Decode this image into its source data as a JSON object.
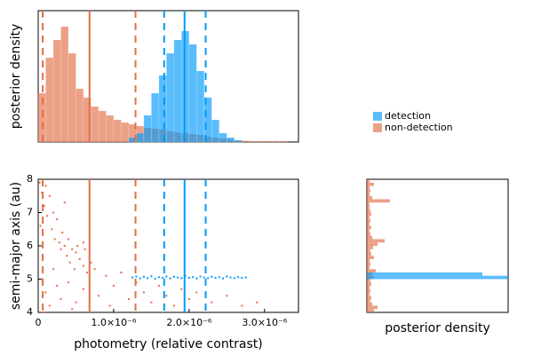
{
  "chart_data": [
    {
      "type": "histogram",
      "ylabel": "posterior density",
      "bins": [
        0,
        1e-07,
        2e-07,
        3e-07,
        4e-07,
        5e-07,
        6e-07,
        7e-07,
        8e-07,
        9e-07,
        1e-06,
        1.1e-06,
        1.2e-06,
        1.3e-06,
        1.4e-06,
        1.5e-06,
        1.6e-06,
        1.7e-06,
        1.8e-06,
        1.9e-06,
        2e-06,
        2.1e-06,
        2.2e-06,
        2.3e-06,
        2.4e-06,
        2.5e-06,
        2.6e-06,
        2.7e-06,
        2.8e-06,
        2.9e-06,
        3e-06,
        3.1e-06,
        3.2e-06,
        3.3e-06
      ],
      "series": [
        {
          "name": "detection",
          "color": "#009afa",
          "values": [
            0,
            0,
            0,
            0,
            0,
            0,
            0,
            0,
            0,
            0,
            0,
            0,
            5,
            10,
            30,
            55,
            75,
            100,
            115,
            125,
            110,
            80,
            50,
            25,
            10,
            5,
            2,
            0,
            0,
            0,
            0,
            0,
            0
          ]
        },
        {
          "name": "non-detection",
          "color": "#e26f46",
          "values": [
            55,
            95,
            115,
            130,
            100,
            60,
            50,
            40,
            35,
            30,
            25,
            22,
            20,
            18,
            16,
            15,
            14,
            12,
            11,
            10,
            9,
            8,
            6,
            5,
            4,
            3,
            2,
            1.5,
            1,
            1,
            1,
            1,
            1
          ]
        }
      ],
      "xlim": [
        0,
        3.45e-06
      ],
      "ylim": [
        0,
        148
      ],
      "legend": "outer right",
      "vlines": [
        {
          "x": 6e-08,
          "color": "#e26f46",
          "dash": true
        },
        {
          "x": 6.8e-07,
          "color": "#e26f46",
          "dash": false
        },
        {
          "x": 1.29e-06,
          "color": "#e26f46",
          "dash": true
        },
        {
          "x": 1.67e-06,
          "color": "#009afa",
          "dash": true
        },
        {
          "x": 1.94e-06,
          "color": "#009afa",
          "dash": false
        },
        {
          "x": 2.22e-06,
          "color": "#009afa",
          "dash": true
        }
      ]
    },
    {
      "type": "scatter",
      "xlabel": "photometry (relative contrast)",
      "ylabel": "semi-major axis (au)",
      "xlim": [
        0,
        3.45e-06
      ],
      "ylim": [
        4,
        8
      ],
      "xticks": [
        0,
        {
          "value": 1e-06,
          "label": "1.0×10⁻⁶"
        },
        {
          "value": 2e-06,
          "label": "2.0×10⁻⁶"
        },
        {
          "value": 3e-06,
          "label": "3.0×10⁻⁶"
        }
      ],
      "yticks": [
        4,
        5,
        6,
        7,
        8
      ],
      "series": [
        {
          "color": "#e26f46",
          "x": [
            2e-08,
            5e-08,
            8e-08,
            1e-07,
            1.2e-07,
            1.5e-07,
            1.8e-07,
            2e-07,
            2.2e-07,
            2.5e-07,
            2.8e-07,
            3e-07,
            3.2e-07,
            3.5e-07,
            3.8e-07,
            4e-07,
            4.2e-07,
            4.5e-07,
            4.8e-07,
            5e-07,
            5.2e-07,
            5.5e-07,
            6e-07,
            6.2e-07,
            6.5e-07,
            7e-07,
            5e-08,
            1e-07,
            1.5e-07,
            2e-07,
            2.5e-07,
            3e-07,
            4e-07,
            5e-07,
            6e-07,
            7.5e-07,
            8e-07,
            9e-07,
            9.5e-07,
            1e-06,
            1.1e-06,
            1.2e-06,
            1.3e-06,
            1.4e-06,
            1.5e-06,
            1.6e-06,
            1.7e-06,
            1.8e-06,
            1.9e-06,
            2e-06,
            2.1e-06,
            2.3e-06,
            2.5e-06,
            2.7e-06,
            2.9e-06,
            8e-08,
            3.5e-07,
            3e-08,
            6e-07,
            4.5e-07
          ],
          "y": [
            7.9,
            7.6,
            7.2,
            7.8,
            6.9,
            7.5,
            6.5,
            7.0,
            6.2,
            6.8,
            6.1,
            5.9,
            6.4,
            6.0,
            5.7,
            6.2,
            5.5,
            5.9,
            5.3,
            5.8,
            6.0,
            5.6,
            5.4,
            5.9,
            5.2,
            5.5,
            5.0,
            4.6,
            4.2,
            5.3,
            4.8,
            4.4,
            4.9,
            4.3,
            4.7,
            5.3,
            4.5,
            5.1,
            4.2,
            4.8,
            5.2,
            4.4,
            4.9,
            4.6,
            4.3,
            4.8,
            4.5,
            4.2,
            4.7,
            4.4,
            4.6,
            4.3,
            4.5,
            4.2,
            4.3,
            4.0,
            7.3,
            6.6,
            6.1,
            4.1
          ]
        },
        {
          "color": "#009afa",
          "x": [
            1.25e-06,
            1.3e-06,
            1.35e-06,
            1.4e-06,
            1.45e-06,
            1.5e-06,
            1.55e-06,
            1.6e-06,
            1.65e-06,
            1.7e-06,
            1.75e-06,
            1.8e-06,
            1.85e-06,
            1.9e-06,
            1.95e-06,
            2e-06,
            2.05e-06,
            2.1e-06,
            2.15e-06,
            2.2e-06,
            2.25e-06,
            2.3e-06,
            2.35e-06,
            2.4e-06,
            2.45e-06,
            2.5e-06,
            2.55e-06,
            2.6e-06,
            2.65e-06,
            2.7e-06,
            2.75e-06
          ],
          "y": [
            5.05,
            5.08,
            5.02,
            5.07,
            5.03,
            5.09,
            5.01,
            5.06,
            5.04,
            5.08,
            5.02,
            5.07,
            5.05,
            5.03,
            5.09,
            5.04,
            5.06,
            5.02,
            5.08,
            5.05,
            5.03,
            5.07,
            5.04,
            5.06,
            5.02,
            5.08,
            5.05,
            5.03,
            5.06,
            5.04,
            5.05
          ]
        }
      ],
      "vlines": [
        {
          "x": 6e-08,
          "color": "#e26f46",
          "dash": true
        },
        {
          "x": 6.8e-07,
          "color": "#e26f46",
          "dash": false
        },
        {
          "x": 1.29e-06,
          "color": "#e26f46",
          "dash": true
        },
        {
          "x": 1.67e-06,
          "color": "#009afa",
          "dash": true
        },
        {
          "x": 1.94e-06,
          "color": "#009afa",
          "dash": false
        },
        {
          "x": 2.22e-06,
          "color": "#009afa",
          "dash": true
        }
      ]
    },
    {
      "type": "histogram",
      "orientation": "horizontal",
      "xlabel": "posterior density",
      "bins": [
        4.0,
        4.1,
        4.2,
        4.3,
        4.4,
        4.5,
        4.6,
        4.7,
        4.8,
        4.9,
        5.0,
        5.1,
        5.2,
        5.3,
        5.4,
        5.5,
        5.6,
        5.7,
        5.8,
        5.9,
        6.0,
        6.1,
        6.2,
        6.3,
        6.4,
        6.5,
        6.6,
        6.7,
        6.8,
        6.9,
        7.0,
        7.1,
        7.2,
        7.3,
        7.4,
        7.5,
        7.6,
        7.7,
        7.8,
        7.9,
        8.0
      ],
      "series": [
        {
          "color": "#009afa",
          "values": [
            0,
            0,
            0,
            0,
            0,
            0,
            0,
            0,
            0,
            0,
            159,
            130,
            0,
            0,
            0,
            0,
            0,
            0,
            0,
            0,
            0,
            0,
            0,
            0,
            0,
            0,
            0,
            0,
            0,
            0,
            0,
            0,
            0,
            0,
            0,
            0,
            0,
            0,
            0,
            0
          ]
        },
        {
          "color": "#e26f46",
          "values": [
            8,
            12,
            6,
            4,
            5,
            3,
            4,
            3,
            5,
            4,
            8,
            6,
            10,
            3,
            4,
            3,
            8,
            5,
            4,
            7,
            12,
            20,
            6,
            4,
            3,
            5,
            3,
            4,
            3,
            5,
            4,
            3,
            3,
            26,
            6,
            3,
            4,
            3,
            8,
            3
          ]
        }
      ],
      "xlim": [
        0,
        159
      ],
      "ylim": [
        4,
        8
      ]
    }
  ]
}
